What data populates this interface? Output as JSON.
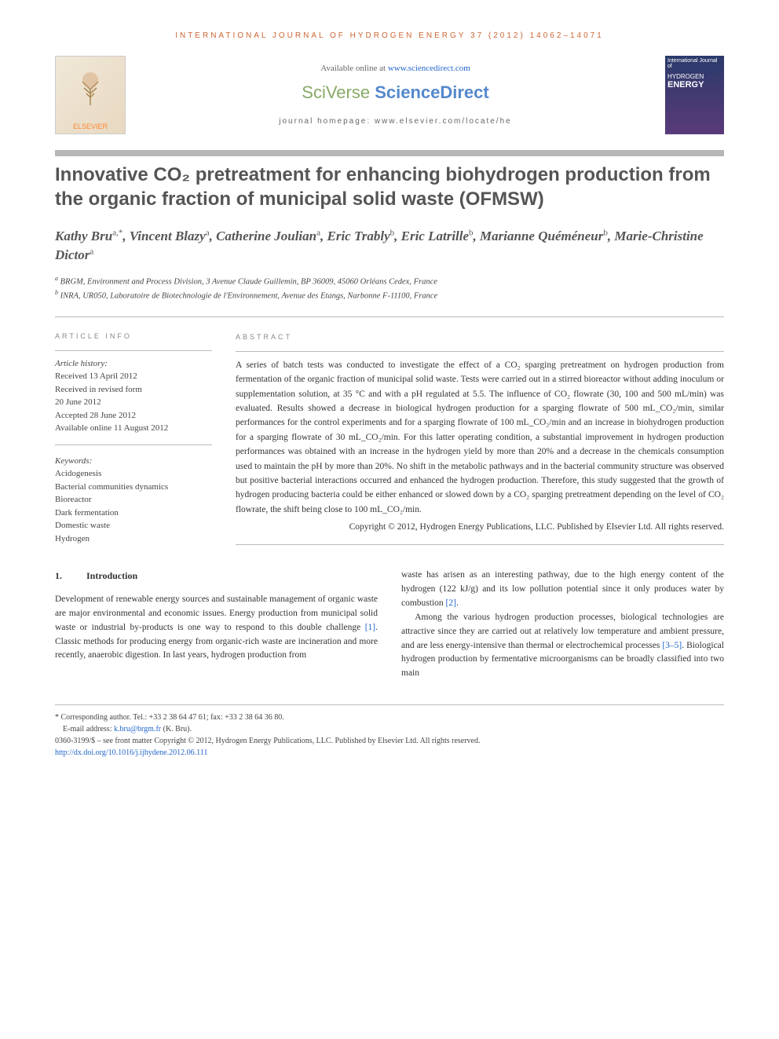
{
  "journal_header": "INTERNATIONAL JOURNAL OF HYDROGEN ENERGY 37 (2012) 14062–14071",
  "elsevier_label": "ELSEVIER",
  "available_prefix": "Available online at ",
  "available_link": "www.sciencedirect.com",
  "sciverse_prefix": "SciVerse",
  "sciverse_main": " ScienceDirect",
  "homepage_line": "journal homepage: www.elsevier.com/locate/he",
  "cover_top": "International Journal of",
  "cover_hydrogen": "HYDROGEN",
  "cover_energy": "ENERGY",
  "title": "Innovative CO₂ pretreatment for enhancing biohydrogen production from the organic fraction of municipal solid waste (OFMSW)",
  "authors_html": "Kathy Bru<sup>a,*</sup>, Vincent Blazy<sup>a</sup>, Catherine Joulian<sup>a</sup>, Eric Trably<sup>b</sup>, Eric Latrille<sup>b</sup>, Marianne Quéméneur<sup>b</sup>, Marie-Christine Dictor<sup>a</sup>",
  "affiliation_a": "BRGM, Environment and Process Division, 3 Avenue Claude Guillemin, BP 36009, 45060 Orléans Cedex, France",
  "affiliation_b": "INRA, UR050, Laboratoire de Biotechnologie de l'Environnement, Avenue des Etangs, Narbonne F-11100, France",
  "info_heading": "ARTICLE INFO",
  "abstract_heading": "ABSTRACT",
  "history_label": "Article history:",
  "history": {
    "received": "Received 13 April 2012",
    "revised1": "Received in revised form",
    "revised2": "20 June 2012",
    "accepted": "Accepted 28 June 2012",
    "online": "Available online 11 August 2012"
  },
  "keywords_label": "Keywords:",
  "keywords": [
    "Acidogenesis",
    "Bacterial communities dynamics",
    "Bioreactor",
    "Dark fermentation",
    "Domestic waste",
    "Hydrogen"
  ],
  "abstract_text": "A series of batch tests was conducted to investigate the effect of a CO₂ sparging pretreatment on hydrogen production from fermentation of the organic fraction of municipal solid waste. Tests were carried out in a stirred bioreactor without adding inoculum or supplementation solution, at 35 °C and with a pH regulated at 5.5. The influence of CO₂ flowrate (30, 100 and 500 mL/min) was evaluated. Results showed a decrease in biological hydrogen production for a sparging flowrate of 500 mL_CO₂/min, similar performances for the control experiments and for a sparging flowrate of 100 mL_CO₂/min and an increase in biohydrogen production for a sparging flowrate of 30 mL_CO₂/min. For this latter operating condition, a substantial improvement in hydrogen production performances was obtained with an increase in the hydrogen yield by more than 20% and a decrease in the chemicals consumption used to maintain the pH by more than 20%. No shift in the metabolic pathways and in the bacterial community structure was observed but positive bacterial interactions occurred and enhanced the hydrogen production. Therefore, this study suggested that the growth of hydrogen producing bacteria could be either enhanced or slowed down by a CO₂ sparging pretreatment depending on the level of CO₂ flowrate, the shift being close to 100 mL_CO₂/min.",
  "abstract_copyright": "Copyright © 2012, Hydrogen Energy Publications, LLC. Published by Elsevier Ltd. All rights reserved.",
  "section_number": "1.",
  "section_title": "Introduction",
  "intro_left": "Development of renewable energy sources and sustainable management of organic waste are major environmental and economic issues. Energy production from municipal solid waste or industrial by-products is one way to respond to this double challenge [1]. Classic methods for producing energy from organic-rich waste are incineration and more recently, anaerobic digestion. In last years, hydrogen production from",
  "intro_right_p1": "waste has arisen as an interesting pathway, due to the high energy content of the hydrogen (122 kJ/g) and its low pollution potential since it only produces water by combustion [2].",
  "intro_right_p2": "Among the various hydrogen production processes, biological technologies are attractive since they are carried out at relatively low temperature and ambient pressure, and are less energy-intensive than thermal or electrochemical processes [3–5]. Biological hydrogen production by fermentative microorganisms can be broadly classified into two main",
  "footer": {
    "corresponding": "* Corresponding author. Tel.: +33 2 38 64 47 61; fax: +33 2 38 64 36 80.",
    "email_label": "E-mail address: ",
    "email": "k.bru@brgm.fr",
    "email_suffix": " (K. Bru).",
    "issn_line": "0360-3199/$ – see front matter Copyright © 2012, Hydrogen Energy Publications, LLC. Published by Elsevier Ltd. All rights reserved.",
    "doi": "http://dx.doi.org/10.1016/j.ijhydene.2012.06.111"
  },
  "colors": {
    "header_orange": "#cc6633",
    "link_blue": "#2266cc",
    "title_gray": "#555555",
    "bar_gray": "#b7b7b7"
  }
}
